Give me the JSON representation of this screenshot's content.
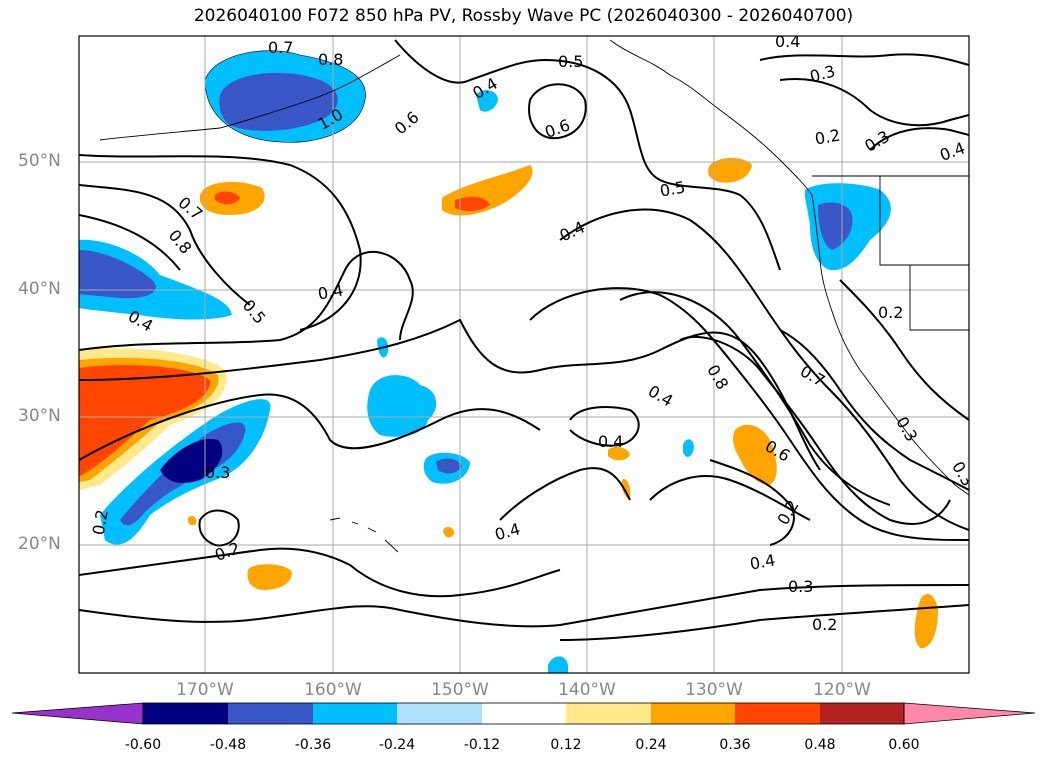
{
  "title": "2026040100 F072 850 hPa PV, Rossby Wave PC (2026040300 - 2026040700)",
  "lat_labels": [
    "50°N",
    "40°N",
    "30°N",
    "20°N"
  ],
  "lon_labels": [
    "170°W",
    "160°W",
    "150°W",
    "140°W",
    "130°W",
    "120°W"
  ],
  "contour_labels": [
    {
      "id": "c1",
      "text": "0.7"
    },
    {
      "id": "c2",
      "text": "0.8"
    },
    {
      "id": "c3",
      "text": "1.0"
    },
    {
      "id": "c4",
      "text": "0.6"
    },
    {
      "id": "c5",
      "text": "0.4"
    },
    {
      "id": "c6",
      "text": "0.5"
    },
    {
      "id": "c7",
      "text": "0.6"
    },
    {
      "id": "c8",
      "text": "0.4"
    },
    {
      "id": "c9",
      "text": "0.3"
    },
    {
      "id": "c10",
      "text": "0.2"
    },
    {
      "id": "c11",
      "text": "0.3"
    },
    {
      "id": "c12",
      "text": "0.4"
    },
    {
      "id": "c13",
      "text": "0.7"
    },
    {
      "id": "c14",
      "text": "0.8"
    },
    {
      "id": "c15",
      "text": "0.4"
    },
    {
      "id": "c16",
      "text": "0.5"
    },
    {
      "id": "c17",
      "text": "0.4"
    },
    {
      "id": "c18",
      "text": "0.5"
    },
    {
      "id": "c19",
      "text": "0.4"
    },
    {
      "id": "c20",
      "text": "0.2"
    },
    {
      "id": "c21",
      "text": "0.7"
    },
    {
      "id": "c22",
      "text": "0.8"
    },
    {
      "id": "c23",
      "text": "0.4"
    },
    {
      "id": "c24",
      "text": "0.4"
    },
    {
      "id": "c25",
      "text": "0.6"
    },
    {
      "id": "c26",
      "text": "0.3"
    },
    {
      "id": "c27",
      "text": "0.2"
    },
    {
      "id": "c28",
      "text": "0.2"
    },
    {
      "id": "c29",
      "text": "0.4"
    },
    {
      "id": "c30",
      "text": "0.4"
    },
    {
      "id": "c31",
      "text": "0.3"
    },
    {
      "id": "c32",
      "text": "0.2"
    },
    {
      "id": "c33",
      "text": "0.3"
    },
    {
      "id": "c34",
      "text": "0.2"
    },
    {
      "id": "c35",
      "text": "0.3"
    }
  ],
  "colorbar": {
    "ticks": [
      "-0.60",
      "-0.48",
      "-0.36",
      "-0.24",
      "-0.12",
      "0.12",
      "0.24",
      "0.36",
      "0.48",
      "0.60"
    ],
    "colors": [
      "#9932cc",
      "#000080",
      "#3a57c8",
      "#00bfff",
      "#ade0fa",
      "#ffffff",
      "#ffe98a",
      "#ffa500",
      "#ff4500",
      "#b22222",
      "#ff88aa"
    ]
  },
  "fill_colors": {
    "neg1": "#ade0fa",
    "neg2": "#00bfff",
    "neg3": "#3a57c8",
    "neg4": "#000080",
    "pos1": "#ffe98a",
    "pos2": "#ffa500",
    "pos3": "#ff4500"
  }
}
